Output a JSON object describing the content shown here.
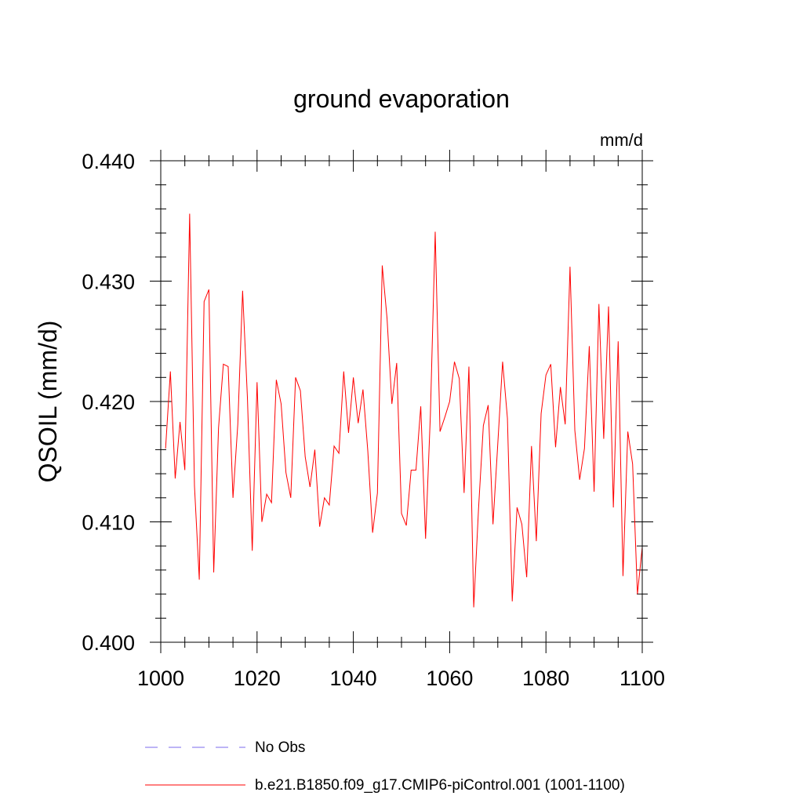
{
  "chart_data": {
    "type": "line",
    "title": "ground evaporation",
    "units_label": "mm/d",
    "ylabel": "QSOIL  (mm/d)",
    "xlabel": "",
    "xlim": [
      1000,
      1100
    ],
    "ylim": [
      0.4,
      0.44
    ],
    "x_ticks": [
      1000,
      1020,
      1040,
      1060,
      1080,
      1100
    ],
    "x_tick_labels": [
      "1000",
      "1020",
      "1040",
      "1060",
      "1080",
      "1100"
    ],
    "y_ticks": [
      0.4,
      0.41,
      0.42,
      0.43,
      0.44
    ],
    "y_tick_labels": [
      "0.400",
      "0.410",
      "0.420",
      "0.430",
      "0.440"
    ],
    "series": [
      {
        "name": "b.e21.B1850.f09_g17.CMIP6-piControl.001 (1001-1100)",
        "color": "#ff0000",
        "x_start": 1001,
        "x_step": 1,
        "values": [
          0.4161,
          0.4225,
          0.4136,
          0.4183,
          0.4143,
          0.4356,
          0.413,
          0.4052,
          0.4283,
          0.4293,
          0.4058,
          0.4178,
          0.4231,
          0.4229,
          0.412,
          0.4181,
          0.4292,
          0.4203,
          0.4076,
          0.4216,
          0.41,
          0.4123,
          0.4116,
          0.4218,
          0.4198,
          0.4141,
          0.412,
          0.422,
          0.4209,
          0.4154,
          0.4129,
          0.416,
          0.4096,
          0.412,
          0.4114,
          0.4163,
          0.4157,
          0.4225,
          0.4174,
          0.422,
          0.4182,
          0.421,
          0.4159,
          0.4091,
          0.4124,
          0.4313,
          0.4269,
          0.4198,
          0.4232,
          0.4107,
          0.4097,
          0.4143,
          0.4143,
          0.4196,
          0.4086,
          0.4189,
          0.4341,
          0.4175,
          0.4187,
          0.42,
          0.4233,
          0.4219,
          0.4124,
          0.4229,
          0.4029,
          0.4111,
          0.418,
          0.4197,
          0.4098,
          0.4165,
          0.4233,
          0.4186,
          0.4034,
          0.4112,
          0.4098,
          0.4054,
          0.4163,
          0.4084,
          0.419,
          0.4222,
          0.4231,
          0.4162,
          0.4212,
          0.4181,
          0.4312,
          0.4176,
          0.4135,
          0.4161,
          0.4246,
          0.4125,
          0.4281,
          0.4169,
          0.4279,
          0.4112,
          0.425,
          0.4055,
          0.4175,
          0.4148,
          0.404,
          0.4079
        ]
      },
      {
        "name": "No Obs",
        "color": "#7b68ee",
        "style": "dashed",
        "values": []
      }
    ],
    "legend_position": "bottom-left"
  }
}
